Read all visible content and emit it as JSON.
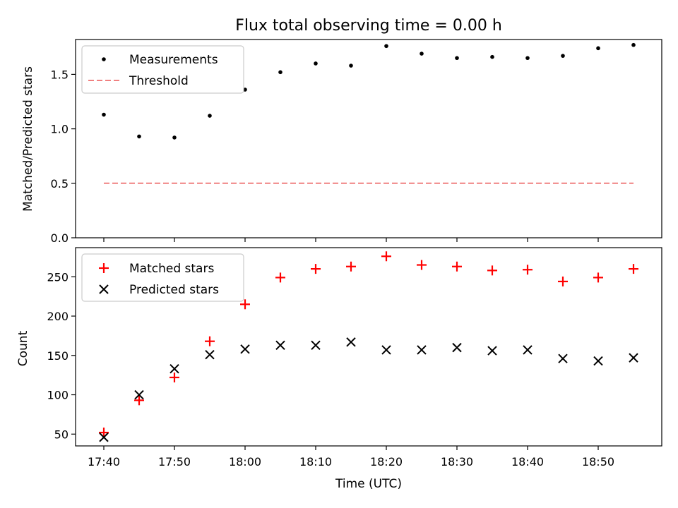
{
  "chart_data": [
    {
      "type": "scatter",
      "title": "Flux total observing time = 0.00 h",
      "xlabel": "",
      "ylabel": "Matched/Predicted stars",
      "xlim": [
        "17:36",
        "18:59"
      ],
      "ylim": [
        0,
        1.82
      ],
      "yticks": [
        0.0,
        0.5,
        1.0,
        1.5
      ],
      "ytick_labels": [
        "0.0",
        "0.5",
        "1.0",
        "1.5"
      ],
      "x": [
        "17:40",
        "17:45",
        "17:50",
        "17:55",
        "18:00",
        "18:05",
        "18:10",
        "18:15",
        "18:20",
        "18:25",
        "18:30",
        "18:35",
        "18:40",
        "18:45",
        "18:50",
        "18:55"
      ],
      "series": [
        {
          "name": "Measurements",
          "marker": "dot",
          "color": "#000000",
          "values": [
            1.13,
            0.93,
            0.92,
            1.12,
            1.36,
            1.52,
            1.6,
            1.58,
            1.76,
            1.69,
            1.65,
            1.66,
            1.65,
            1.67,
            1.74,
            1.77
          ]
        },
        {
          "name": "Threshold",
          "marker": "dashed-line",
          "color": "#f08080",
          "values": [
            0.5,
            0.5
          ]
        }
      ],
      "threshold_x": [
        "17:40",
        "18:55"
      ],
      "legend": "upper-left"
    },
    {
      "type": "scatter",
      "title": "",
      "xlabel": "Time (UTC)",
      "ylabel": "Count",
      "xlim": [
        "17:36",
        "18:59"
      ],
      "ylim": [
        35,
        287
      ],
      "yticks": [
        50,
        100,
        150,
        200,
        250
      ],
      "ytick_labels": [
        "50",
        "100",
        "150",
        "200",
        "250"
      ],
      "xticks": [
        "17:40",
        "17:50",
        "18:00",
        "18:10",
        "18:20",
        "18:30",
        "18:40",
        "18:50"
      ],
      "x": [
        "17:40",
        "17:45",
        "17:50",
        "17:55",
        "18:00",
        "18:05",
        "18:10",
        "18:15",
        "18:20",
        "18:25",
        "18:30",
        "18:35",
        "18:40",
        "18:45",
        "18:50",
        "18:55"
      ],
      "series": [
        {
          "name": "Matched stars",
          "marker": "plus",
          "color": "#ff0000",
          "values": [
            52,
            93,
            122,
            168,
            215,
            249,
            260,
            263,
            276,
            265,
            263,
            258,
            259,
            244,
            249,
            260
          ]
        },
        {
          "name": "Predicted stars",
          "marker": "x",
          "color": "#000000",
          "values": [
            46,
            100,
            133,
            151,
            158,
            163,
            163,
            167,
            157,
            157,
            160,
            156,
            157,
            146,
            143,
            147
          ]
        }
      ],
      "legend": "upper-left"
    }
  ]
}
